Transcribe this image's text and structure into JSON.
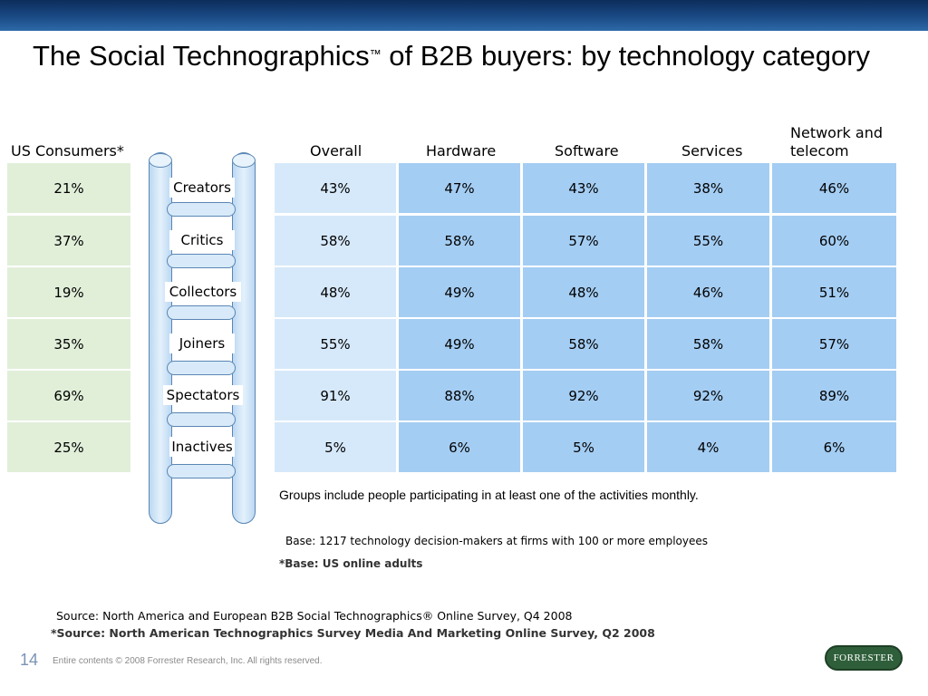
{
  "slide": {
    "title": "The Social Technographics",
    "title_tm": "™",
    "title_rest": " of B2B buyers: by technology category",
    "page_number": "14",
    "copyright": "Entire contents © 2008 Forrester Research, Inc. All rights reserved.",
    "logo_text": "FORRESTER"
  },
  "consumers_header": "US Consumers*",
  "columns": [
    "Overall",
    "Hardware",
    "Software",
    "Services",
    "Network and telecom"
  ],
  "columns_line2": {
    "network_1": "Network and",
    "network_2": "telecom"
  },
  "segments": [
    "Creators",
    "Critics",
    "Collectors",
    "Joiners",
    "Spectators",
    "Inactives"
  ],
  "consumers": [
    "21%",
    "37%",
    "19%",
    "35%",
    "69%",
    "25%"
  ],
  "table": [
    [
      "43%",
      "47%",
      "43%",
      "38%",
      "46%"
    ],
    [
      "58%",
      "58%",
      "57%",
      "55%",
      "60%"
    ],
    [
      "48%",
      "49%",
      "48%",
      "46%",
      "51%"
    ],
    [
      "55%",
      "49%",
      "58%",
      "58%",
      "57%"
    ],
    [
      "91%",
      "88%",
      "92%",
      "92%",
      "89%"
    ],
    [
      "5%",
      "6%",
      "5%",
      "4%",
      "6%"
    ]
  ],
  "notes": {
    "groups": "Groups include people participating in at least one of the activities monthly.",
    "base": "Base: 1217 technology decision-makers at firms with 100 or more employees",
    "base_star": "*Base: US online adults",
    "source": "Source: North America and European B2B Social Technographics® Online Survey, Q4 2008",
    "source_star": "*Source: North American Technographics Survey Media And Marketing Online Survey, Q2 2008"
  },
  "colors": {
    "header_bar": "#1a4a85",
    "consumer_cells": "#e1efd9",
    "overall_cells": "#d6e9fa",
    "category_cells": "#a4cdf3"
  }
}
